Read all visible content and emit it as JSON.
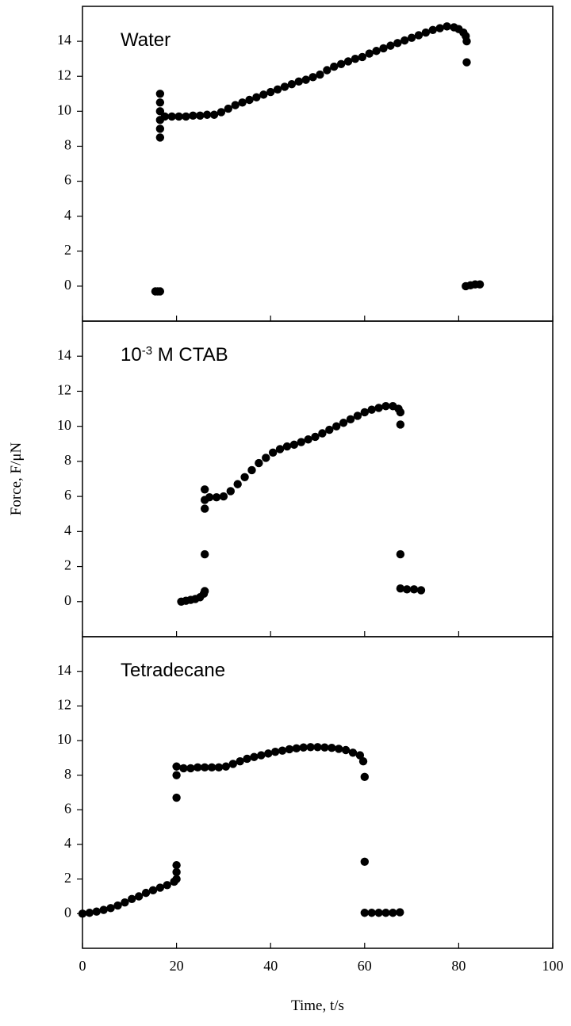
{
  "chart_data": [
    {
      "type": "scatter",
      "title": [
        "Water"
      ],
      "color": "#000000",
      "xlim": [
        0,
        100
      ],
      "xticks": [
        0,
        20,
        40,
        60,
        80,
        100
      ],
      "ylim": [
        -2,
        16
      ],
      "yticks": [
        0,
        2,
        4,
        6,
        8,
        10,
        12,
        14
      ],
      "x": [
        15.5,
        16,
        16.5,
        16.5,
        16.5,
        16.5,
        16.5,
        16.5,
        16.5,
        17.5,
        19,
        20.5,
        22,
        23.5,
        25,
        26.5,
        28,
        29.5,
        31,
        32.5,
        34,
        35.5,
        37,
        38.5,
        40,
        41.5,
        43,
        44.5,
        46,
        47.5,
        49,
        50.5,
        52,
        53.5,
        55,
        56.5,
        58,
        59.5,
        61,
        62.5,
        64,
        65.5,
        67,
        68.5,
        70,
        71.5,
        73,
        74.5,
        76,
        77.5,
        79,
        80,
        81,
        81.5,
        81.7,
        81.7,
        81.5,
        82.5,
        83.5,
        84.5
      ],
      "y": [
        -0.3,
        -0.3,
        -0.3,
        8.5,
        9,
        9.5,
        10,
        10.5,
        11,
        9.7,
        9.7,
        9.7,
        9.7,
        9.75,
        9.75,
        9.8,
        9.8,
        9.95,
        10.15,
        10.35,
        10.5,
        10.65,
        10.8,
        10.95,
        11.1,
        11.25,
        11.4,
        11.55,
        11.7,
        11.8,
        11.95,
        12.1,
        12.35,
        12.55,
        12.7,
        12.85,
        13.0,
        13.1,
        13.3,
        13.45,
        13.6,
        13.75,
        13.9,
        14.05,
        14.2,
        14.35,
        14.5,
        14.65,
        14.75,
        14.85,
        14.8,
        14.7,
        14.5,
        14.3,
        14.0,
        12.8,
        0.0,
        0.05,
        0.1,
        0.1
      ]
    },
    {
      "type": "scatter",
      "title": [
        "10",
        "-3",
        " M CTAB"
      ],
      "color": "#000000",
      "ylabel": "Force, F/μN",
      "xlim": [
        0,
        100
      ],
      "xticks": [
        0,
        20,
        40,
        60,
        80,
        100
      ],
      "ylim": [
        -2,
        16
      ],
      "yticks": [
        0,
        2,
        4,
        6,
        8,
        10,
        12,
        14
      ],
      "x": [
        21,
        22,
        23,
        24,
        25,
        25.8,
        26,
        26,
        26,
        26,
        26,
        27,
        28.5,
        30,
        31.5,
        33,
        34.5,
        36,
        37.5,
        39,
        40.5,
        42,
        43.5,
        45,
        46.5,
        48,
        49.5,
        51,
        52.5,
        54,
        55.5,
        57,
        58.5,
        60,
        61.5,
        63,
        64.5,
        66,
        67.2,
        67.6,
        67.6,
        67.6,
        67.6,
        69,
        70.5,
        72
      ],
      "y": [
        0,
        0.05,
        0.1,
        0.15,
        0.25,
        0.45,
        0.6,
        2.7,
        5.3,
        5.8,
        6.4,
        5.95,
        5.95,
        6.0,
        6.3,
        6.7,
        7.1,
        7.5,
        7.9,
        8.2,
        8.5,
        8.7,
        8.85,
        8.95,
        9.1,
        9.25,
        9.4,
        9.6,
        9.8,
        10.0,
        10.2,
        10.4,
        10.6,
        10.8,
        10.95,
        11.05,
        11.15,
        11.15,
        11.0,
        10.8,
        10.1,
        2.7,
        0.75,
        0.7,
        0.7,
        0.65
      ]
    },
    {
      "type": "scatter",
      "title": [
        "Tetradecane"
      ],
      "color": "#000000",
      "xlabel": "Time, t/s",
      "xlim": [
        0,
        100
      ],
      "xticks": [
        0,
        20,
        40,
        60,
        80,
        100
      ],
      "ylim": [
        -2,
        16
      ],
      "yticks": [
        0,
        2,
        4,
        6,
        8,
        10,
        12,
        14
      ],
      "x": [
        0,
        1.5,
        3,
        4.5,
        6,
        7.5,
        9,
        10.5,
        12,
        13.5,
        15,
        16.5,
        18,
        19.5,
        20,
        20,
        20,
        20,
        20,
        20,
        21.5,
        23,
        24.5,
        26,
        27.5,
        29,
        30.5,
        32,
        33.5,
        35,
        36.5,
        38,
        39.5,
        41,
        42.5,
        44,
        45.5,
        47,
        48.5,
        50,
        51.5,
        53,
        54.5,
        56,
        57.5,
        59,
        59.7,
        60,
        60,
        60,
        61.5,
        63,
        64.5,
        66,
        67.5
      ],
      "y": [
        0,
        0.05,
        0.12,
        0.22,
        0.32,
        0.47,
        0.65,
        0.85,
        1.0,
        1.2,
        1.35,
        1.5,
        1.65,
        1.85,
        2.0,
        2.4,
        2.8,
        6.7,
        8.0,
        8.5,
        8.4,
        8.4,
        8.45,
        8.45,
        8.45,
        8.45,
        8.5,
        8.65,
        8.8,
        8.95,
        9.05,
        9.15,
        9.25,
        9.35,
        9.42,
        9.5,
        9.55,
        9.6,
        9.62,
        9.62,
        9.6,
        9.58,
        9.52,
        9.45,
        9.3,
        9.15,
        8.8,
        7.9,
        3.0,
        0.05,
        0.05,
        0.05,
        0.05,
        0.05,
        0.08
      ]
    }
  ]
}
